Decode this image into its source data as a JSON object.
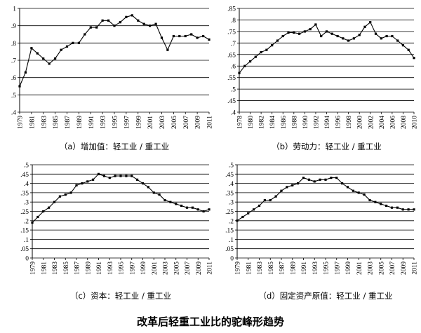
{
  "figure_title": "改革后轻重工业比的驼峰形趋势",
  "chart_data": [
    {
      "type": "line",
      "caption": "（a）增加值：轻工业 / 重工业",
      "ylim": [
        0.4,
        1.0
      ],
      "ystep": 0.1,
      "grid": "horizontal",
      "xtick_labels": [
        "1979",
        "1981",
        "1983",
        "1985",
        "1987",
        "1989",
        "1991",
        "1993",
        "1995",
        "1997",
        "1999",
        "2001",
        "2003",
        "2005",
        "2007",
        "2009",
        "2011"
      ],
      "x": [
        1979,
        1980,
        1981,
        1982,
        1983,
        1984,
        1985,
        1986,
        1987,
        1988,
        1989,
        1990,
        1991,
        1992,
        1993,
        1994,
        1995,
        1996,
        1997,
        1998,
        1999,
        2000,
        2001,
        2002,
        2003,
        2004,
        2005,
        2006,
        2007,
        2008,
        2009,
        2010,
        2011
      ],
      "y": [
        0.55,
        0.63,
        0.77,
        0.74,
        0.71,
        0.68,
        0.71,
        0.76,
        0.78,
        0.8,
        0.8,
        0.85,
        0.89,
        0.89,
        0.93,
        0.93,
        0.9,
        0.92,
        0.95,
        0.96,
        0.93,
        0.91,
        0.9,
        0.91,
        0.83,
        0.76,
        0.84,
        0.84,
        0.84,
        0.85,
        0.83,
        0.84,
        0.82
      ]
    },
    {
      "type": "line",
      "caption": "（b）劳动力：轻工业 / 重工业",
      "ylim": [
        0.4,
        0.85
      ],
      "ystep": 0.05,
      "grid": "horizontal",
      "xtick_labels": [
        "1978",
        "1980",
        "1982",
        "1984",
        "1986",
        "1988",
        "1990",
        "1992",
        "1994",
        "1996",
        "1998",
        "2000",
        "2002",
        "2004",
        "2006",
        "2008",
        "2010"
      ],
      "x": [
        1978,
        1979,
        1980,
        1981,
        1982,
        1983,
        1984,
        1985,
        1986,
        1987,
        1988,
        1989,
        1990,
        1991,
        1992,
        1993,
        1994,
        1995,
        1996,
        1997,
        1998,
        1999,
        2000,
        2001,
        2002,
        2003,
        2004,
        2005,
        2006,
        2007,
        2008,
        2009,
        2010
      ],
      "y": [
        0.57,
        0.6,
        0.62,
        0.64,
        0.66,
        0.67,
        0.69,
        0.71,
        0.73,
        0.745,
        0.745,
        0.74,
        0.75,
        0.76,
        0.78,
        0.73,
        0.75,
        0.74,
        0.73,
        0.72,
        0.71,
        0.72,
        0.735,
        0.77,
        0.79,
        0.74,
        0.72,
        0.73,
        0.73,
        0.71,
        0.69,
        0.67,
        0.635
      ]
    },
    {
      "type": "line",
      "caption": "（c）资本：轻工业 / 重工业",
      "ylim": [
        0,
        0.5
      ],
      "ystep": 0.05,
      "grid": "horizontal",
      "xtick_labels": [
        "1979",
        "1981",
        "1983",
        "1985",
        "1987",
        "1989",
        "1991",
        "1993",
        "1995",
        "1997",
        "1999",
        "2001",
        "2003",
        "2005",
        "2007",
        "2009",
        "2011"
      ],
      "x": [
        1979,
        1980,
        1981,
        1982,
        1983,
        1984,
        1985,
        1986,
        1987,
        1988,
        1989,
        1990,
        1991,
        1992,
        1993,
        1994,
        1995,
        1996,
        1997,
        1998,
        1999,
        2000,
        2001,
        2002,
        2003,
        2004,
        2005,
        2006,
        2007,
        2008,
        2009,
        2010,
        2011
      ],
      "y": [
        0.19,
        0.22,
        0.25,
        0.27,
        0.3,
        0.33,
        0.34,
        0.35,
        0.39,
        0.4,
        0.41,
        0.42,
        0.45,
        0.44,
        0.43,
        0.44,
        0.44,
        0.44,
        0.44,
        0.42,
        0.4,
        0.38,
        0.35,
        0.34,
        0.31,
        0.3,
        0.29,
        0.28,
        0.27,
        0.27,
        0.26,
        0.25,
        0.26
      ]
    },
    {
      "type": "line",
      "caption": "（d）固定资产原值：轻工业 / 重工业",
      "ylim": [
        0,
        0.5
      ],
      "ystep": 0.05,
      "grid": "horizontal",
      "xtick_labels": [
        "1979",
        "1981",
        "1983",
        "1985",
        "1987",
        "1989",
        "1991",
        "1993",
        "1995",
        "1997",
        "1999",
        "2001",
        "2003",
        "2005",
        "2007",
        "2009",
        "2011"
      ],
      "x": [
        1979,
        1980,
        1981,
        1982,
        1983,
        1984,
        1985,
        1986,
        1987,
        1988,
        1989,
        1990,
        1991,
        1992,
        1993,
        1994,
        1995,
        1996,
        1997,
        1998,
        1999,
        2000,
        2001,
        2002,
        2003,
        2004,
        2005,
        2006,
        2007,
        2008,
        2009,
        2010,
        2011
      ],
      "y": [
        0.2,
        0.22,
        0.24,
        0.26,
        0.28,
        0.31,
        0.31,
        0.33,
        0.36,
        0.38,
        0.39,
        0.4,
        0.43,
        0.42,
        0.41,
        0.42,
        0.42,
        0.43,
        0.43,
        0.4,
        0.38,
        0.36,
        0.35,
        0.34,
        0.31,
        0.3,
        0.29,
        0.28,
        0.27,
        0.27,
        0.26,
        0.26,
        0.26
      ]
    }
  ]
}
